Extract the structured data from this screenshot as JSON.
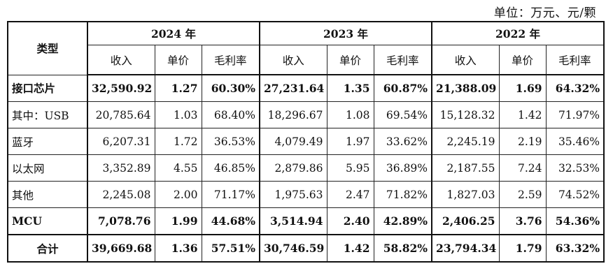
{
  "unit_label": "单位：万元、元/颗",
  "header": {
    "type_label": "类型",
    "years": [
      "2024 年",
      "2023 年",
      "2022 年"
    ],
    "sub": [
      "收入",
      "单价",
      "毛利率"
    ]
  },
  "rows": [
    {
      "label": "接口芯片",
      "bold": true,
      "center": false,
      "v": [
        "32,590.92",
        "1.27",
        "60.30%",
        "27,231.64",
        "1.35",
        "60.87%",
        "21,388.09",
        "1.69",
        "64.32%"
      ]
    },
    {
      "label": "其中：USB",
      "bold": false,
      "center": false,
      "v": [
        "20,785.64",
        "1.03",
        "68.40%",
        "18,296.67",
        "1.08",
        "69.54%",
        "15,128.32",
        "1.42",
        "71.97%"
      ]
    },
    {
      "label": "蓝牙",
      "bold": false,
      "center": false,
      "v": [
        "6,207.31",
        "1.72",
        "36.53%",
        "4,079.49",
        "1.97",
        "33.62%",
        "2,245.19",
        "2.19",
        "35.46%"
      ]
    },
    {
      "label": "以太网",
      "bold": false,
      "center": false,
      "v": [
        "3,352.89",
        "4.55",
        "46.85%",
        "2,879.86",
        "5.95",
        "36.89%",
        "2,187.55",
        "7.24",
        "32.53%"
      ]
    },
    {
      "label": "其他",
      "bold": false,
      "center": false,
      "v": [
        "2,245.08",
        "2.00",
        "71.17%",
        "1,975.63",
        "2.47",
        "71.82%",
        "1,827.03",
        "2.59",
        "74.52%"
      ]
    },
    {
      "label": "MCU",
      "bold": true,
      "center": false,
      "v": [
        "7,078.76",
        "1.99",
        "44.68%",
        "3,514.94",
        "2.40",
        "42.89%",
        "2,406.25",
        "3.76",
        "54.36%"
      ]
    },
    {
      "label": "合计",
      "bold": true,
      "center": true,
      "v": [
        "39,669.68",
        "1.36",
        "57.51%",
        "30,746.59",
        "1.42",
        "58.82%",
        "23,794.34",
        "1.79",
        "63.32%"
      ]
    }
  ]
}
